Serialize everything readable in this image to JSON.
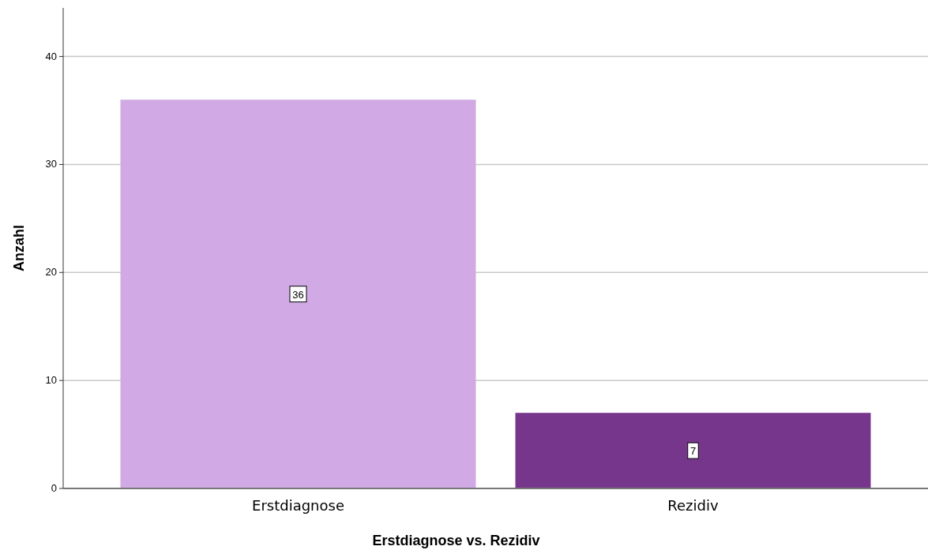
{
  "chart_data": {
    "type": "bar",
    "xlabel": "Erstdiagnose vs. Rezidiv",
    "ylabel": "Anzahl",
    "categories": [
      "Erstdiagnose",
      "Rezidiv"
    ],
    "values": [
      36,
      7
    ],
    "colors": [
      "#d0a9e5",
      "#76368c"
    ],
    "ylim": [
      0,
      44.5
    ],
    "yticks": [
      0,
      10,
      20,
      30,
      40
    ],
    "grid": "y",
    "data_labels": true
  }
}
